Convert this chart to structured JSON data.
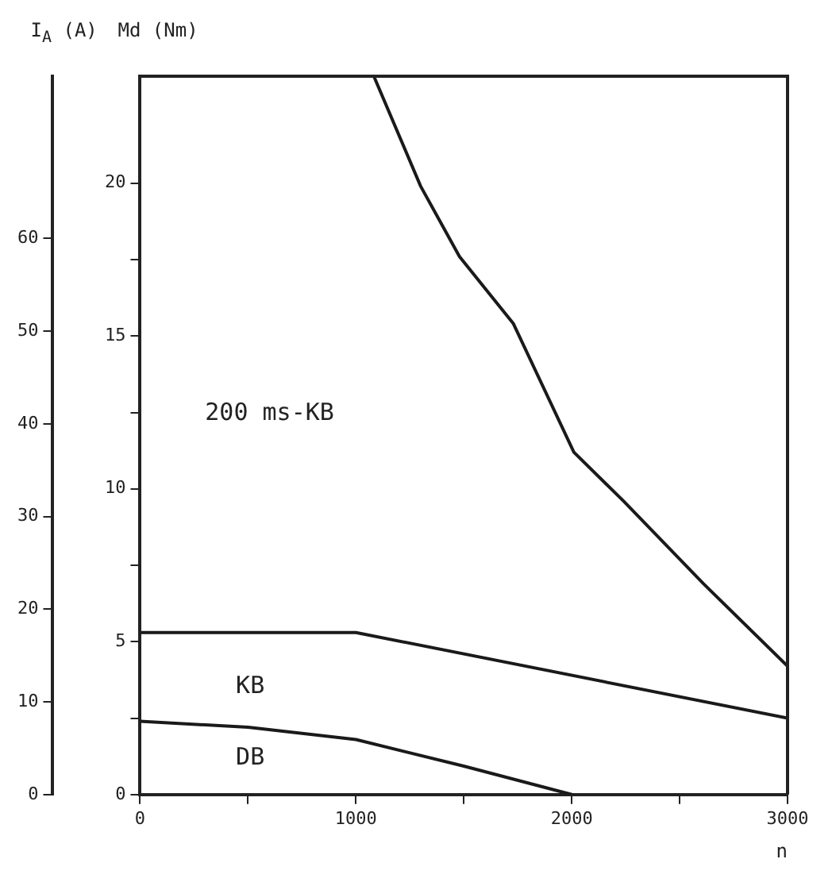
{
  "chart_data": {
    "type": "line",
    "xlabel": "n",
    "ylabel": "Md (Nm)",
    "y2label": "I$_{A}$ (A)",
    "xlim": [
      0,
      3000
    ],
    "xticks": [
      0,
      {
        "value": 500,
        "label": null
      },
      1000,
      {
        "value": 1500,
        "label": null
      },
      2000,
      {
        "value": 2500,
        "label": null
      },
      3000
    ],
    "ylim": [
      0,
      23.5
    ],
    "yticks": [
      0,
      {
        "value": 2.5,
        "label": null
      },
      5,
      {
        "value": 7.5,
        "label": null
      },
      10,
      {
        "value": 12.5,
        "label": null
      },
      15,
      {
        "value": 17.5,
        "label": null
      },
      20
    ],
    "y2lim": [
      0,
      77.5
    ],
    "y2ticks": [
      0,
      10,
      20,
      30,
      40,
      50,
      60
    ],
    "grid": false,
    "legend": false,
    "marker": "none",
    "line_style": "solid",
    "series": [
      {
        "color": "#1a1a1a",
        "x": [
          1083,
          1300,
          1480,
          1730,
          2010,
          2240,
          2610,
          3000
        ],
        "values": [
          23.5,
          19.9,
          17.6,
          15.4,
          11.2,
          9.6,
          6.9,
          4.2
        ]
      },
      {
        "color": "#1a1a1a",
        "x": [
          0,
          1000,
          3000
        ],
        "values": [
          5.3,
          5.3,
          2.5
        ]
      },
      {
        "color": "#1a1a1a",
        "x": [
          0,
          500,
          1000,
          1500,
          2000
        ],
        "values": [
          2.4,
          2.2,
          1.8,
          0.93,
          0
        ]
      }
    ],
    "annotations": [
      "200 ms-KB",
      "KB",
      "DB"
    ]
  }
}
